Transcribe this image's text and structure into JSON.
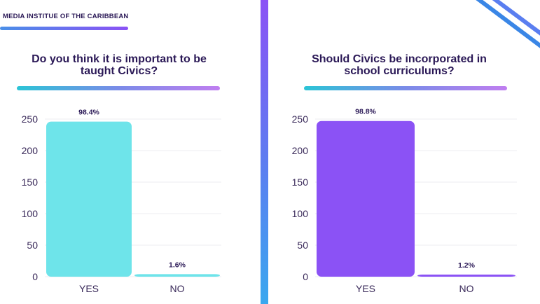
{
  "brand": {
    "name": "MEDIA INSTITUE OF THE CARIBBEAN"
  },
  "colors": {
    "title": "#2a1856",
    "left_bar": "#6ee4ea",
    "right_bar": "#8b52f5",
    "axis_text": "#3a2a5a",
    "grid": "#ececf2"
  },
  "chart_data": [
    {
      "type": "bar",
      "title": "Do you think it is important to be taught Civics?",
      "categories": [
        "YES",
        "NO"
      ],
      "values": [
        246,
        4
      ],
      "data_labels": [
        "98.4%",
        "1.6%"
      ],
      "yticks": [
        0,
        50,
        100,
        150,
        200,
        250
      ],
      "ylim": [
        0,
        250
      ],
      "grid": true
    },
    {
      "type": "bar",
      "title": "Should Civics be incorporated in school curriculums?",
      "categories": [
        "YES",
        "NO"
      ],
      "values": [
        247,
        3
      ],
      "data_labels": [
        "98.8%",
        "1.2%"
      ],
      "yticks": [
        0,
        50,
        100,
        150,
        200,
        250
      ],
      "ylim": [
        0,
        250
      ],
      "grid": true
    }
  ]
}
